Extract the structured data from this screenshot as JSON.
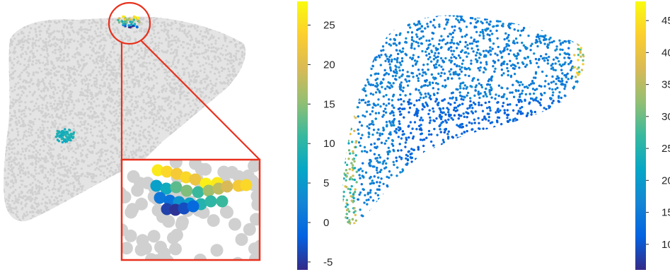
{
  "colormap": {
    "name": "parula",
    "stops": [
      "#352a87",
      "#0363e1",
      "#1485d4",
      "#06a7c6",
      "#38b99e",
      "#92bf73",
      "#d9ba56",
      "#fcce2e",
      "#f9fb0e"
    ]
  },
  "colors": {
    "background_points": "#d0d0d0",
    "highlight_outline": "#e8301c"
  },
  "left_panel": {
    "colorbar": {
      "range": [
        -6,
        28
      ],
      "ticks": [
        {
          "value": 25,
          "label": "25"
        },
        {
          "value": 20,
          "label": "20"
        },
        {
          "value": 15,
          "label": "15"
        },
        {
          "value": 10,
          "label": "10"
        },
        {
          "value": 5,
          "label": "5"
        },
        {
          "value": 0,
          "label": "0"
        },
        {
          "value": -5,
          "label": "-5"
        }
      ]
    }
  },
  "right_panel": {
    "colorbar": {
      "range": [
        6,
        48
      ],
      "ticks": [
        {
          "value": 45,
          "label": "45"
        },
        {
          "value": 40,
          "label": "40"
        },
        {
          "value": 35,
          "label": "35"
        },
        {
          "value": 30,
          "label": "30"
        },
        {
          "value": 25,
          "label": "25"
        },
        {
          "value": 20,
          "label": "20"
        },
        {
          "value": 15,
          "label": "15"
        },
        {
          "value": 10,
          "label": "10"
        }
      ]
    }
  }
}
